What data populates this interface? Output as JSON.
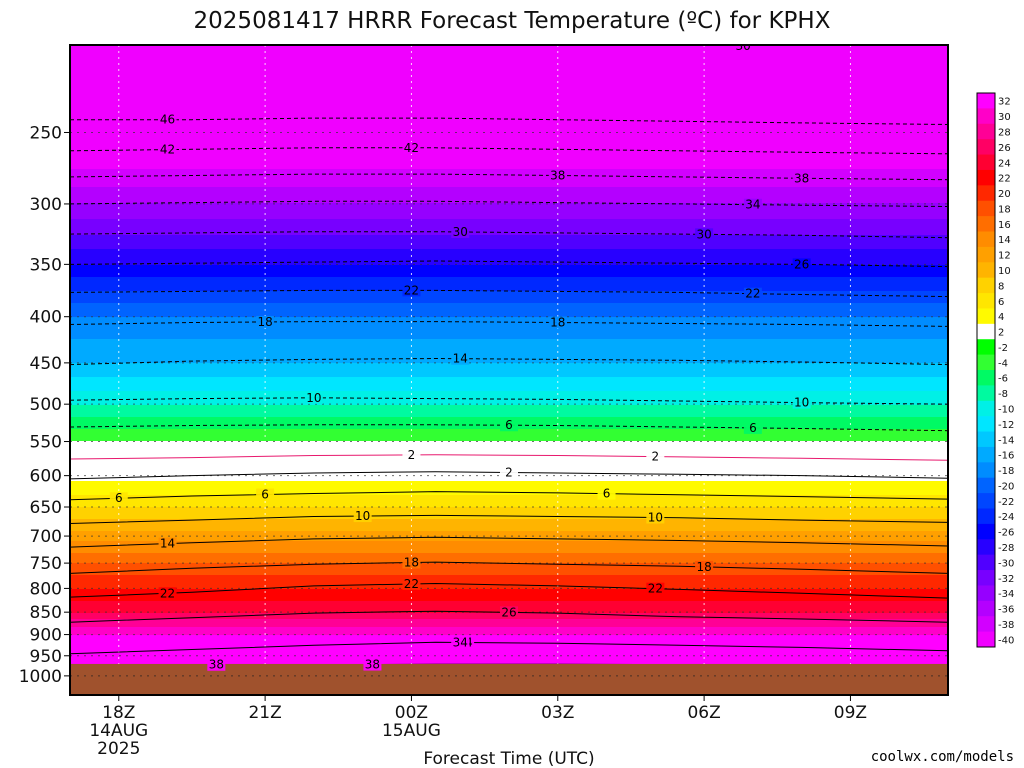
{
  "colors": {
    "ground": "#a0522d",
    "credit": "#dd3333",
    "frame": "#000000",
    "freezing_line": "#e8196e"
  },
  "chart_data": {
    "type": "heatmap",
    "title": "2025081417 HRRR Forecast Temperature (ºC) for KPHX",
    "xlabel": "Forecast Time (UTC)",
    "ylabel": "",
    "credit": "coolwx.com/models",
    "x_ticks": [
      {
        "hour": 18,
        "label": "18Z",
        "sub": [
          "14AUG",
          "2025"
        ]
      },
      {
        "hour": 21,
        "label": "21Z",
        "sub": []
      },
      {
        "hour": 24,
        "label": "00Z",
        "sub": [
          "15AUG"
        ]
      },
      {
        "hour": 27,
        "label": "03Z",
        "sub": []
      },
      {
        "hour": 30,
        "label": "06Z",
        "sub": []
      },
      {
        "hour": 33,
        "label": "09Z",
        "sub": []
      }
    ],
    "xlim_hours": [
      17,
      35
    ],
    "y_scale": "log-pressure",
    "ylim_hpa": [
      1050,
      200
    ],
    "y_ticks": [
      250,
      300,
      350,
      400,
      450,
      500,
      550,
      600,
      650,
      700,
      750,
      800,
      850,
      900,
      950,
      1000
    ],
    "surface_pressure_hpa": 970,
    "colorbar_levels": [
      32,
      30,
      28,
      26,
      24,
      22,
      20,
      18,
      16,
      14,
      12,
      10,
      8,
      6,
      4,
      2,
      -2,
      -4,
      -6,
      -8,
      -10,
      -12,
      -14,
      -16,
      -18,
      -20,
      -22,
      -24,
      -26,
      -28,
      -30,
      -32,
      -34,
      -36,
      -38,
      -40
    ],
    "colorbar_colors": [
      "#ff00ff",
      "#ff00c8",
      "#ff0096",
      "#ff0064",
      "#ff0032",
      "#ff0000",
      "#ff2800",
      "#ff5000",
      "#ff6e00",
      "#ff8c00",
      "#ffa000",
      "#ffb400",
      "#ffd200",
      "#ffe600",
      "#fffa00",
      "#ffffff",
      "#00ff00",
      "#32ff32",
      "#00fa64",
      "#00faa0",
      "#00f0e6",
      "#00e6ff",
      "#00c8ff",
      "#00aaff",
      "#008cff",
      "#0064ff",
      "#0046ff",
      "#0028ff",
      "#0000ff",
      "#2800ff",
      "#5000ff",
      "#7800ff",
      "#9600ff",
      "#b400ff",
      "#d200ff",
      "#f000ff"
    ],
    "temperature_profile": [
      {
        "p": 1000,
        "t": 38
      },
      {
        "p": 950,
        "t": 36
      },
      {
        "p": 900,
        "t": 32
      },
      {
        "p": 850,
        "t": 26
      },
      {
        "p": 800,
        "t": 22
      },
      {
        "p": 750,
        "t": 18
      },
      {
        "p": 700,
        "t": 13
      },
      {
        "p": 650,
        "t": 8
      },
      {
        "p": 600,
        "t": 3
      },
      {
        "p": 550,
        "t": -2
      },
      {
        "p": 500,
        "t": -8
      },
      {
        "p": 450,
        "t": -14
      },
      {
        "p": 400,
        "t": -18
      },
      {
        "p": 350,
        "t": -26
      },
      {
        "p": 300,
        "t": -34
      },
      {
        "p": 250,
        "t": -42
      },
      {
        "p": 200,
        "t": -52
      }
    ],
    "contours": [
      {
        "value": 38,
        "style": "solid",
        "p": [
          975,
          972,
          972,
          971,
          971,
          972,
          975,
          978
        ]
      },
      {
        "value": 34,
        "style": "solid",
        "p": [
          945,
          935,
          925,
          918,
          920,
          925,
          930,
          938
        ]
      },
      {
        "value": 26,
        "style": "solid",
        "p": [
          872,
          862,
          852,
          848,
          852,
          860,
          865,
          872
        ]
      },
      {
        "value": 22,
        "style": "solid",
        "p": [
          818,
          808,
          795,
          790,
          795,
          802,
          810,
          820
        ]
      },
      {
        "value": 18,
        "style": "solid",
        "p": [
          770,
          760,
          752,
          748,
          752,
          756,
          762,
          770
        ]
      },
      {
        "value": 14,
        "style": "solid",
        "p": [
          720,
          712,
          705,
          702,
          705,
          708,
          712,
          718
        ]
      },
      {
        "value": 10,
        "style": "solid",
        "p": [
          678,
          672,
          666,
          664,
          666,
          668,
          672,
          676
        ]
      },
      {
        "value": 6,
        "style": "solid",
        "p": [
          638,
          632,
          628,
          625,
          627,
          630,
          633,
          637
        ]
      },
      {
        "value": 2,
        "style": "solid",
        "p": [
          605,
          600,
          596,
          594,
          596,
          598,
          600,
          604
        ]
      },
      {
        "value": -2,
        "style": "dashed",
        "p": [
          575,
          573,
          570,
          569,
          570,
          572,
          574,
          577
        ]
      },
      {
        "value": 6,
        "style": "dashed",
        "p": [
          530,
          528,
          527,
          527,
          528,
          530,
          532,
          535
        ]
      },
      {
        "value": 10,
        "style": "dashed",
        "p": [
          495,
          493,
          492,
          493,
          494,
          496,
          498,
          500
        ]
      },
      {
        "value": 14,
        "style": "dashed",
        "p": [
          452,
          448,
          446,
          445,
          446,
          447,
          449,
          452
        ]
      },
      {
        "value": 18,
        "style": "dashed",
        "p": [
          408,
          406,
          405,
          405,
          406,
          407,
          408,
          410
        ]
      },
      {
        "value": 22,
        "style": "dashed",
        "p": [
          376,
          375,
          374,
          374,
          375,
          376,
          378,
          380
        ]
      },
      {
        "value": 26,
        "style": "dashed",
        "p": [
          350,
          349,
          348,
          347,
          348,
          349,
          350,
          352
        ]
      },
      {
        "value": 30,
        "style": "dashed",
        "p": [
          324,
          323,
          322,
          322,
          323,
          324,
          325,
          327
        ]
      },
      {
        "value": 34,
        "style": "dashed",
        "p": [
          300,
          299,
          298,
          298,
          299,
          300,
          301,
          302
        ]
      },
      {
        "value": 38,
        "style": "dashed",
        "p": [
          280,
          279,
          278,
          278,
          279,
          280,
          281,
          282
        ]
      },
      {
        "value": 42,
        "style": "dashed",
        "p": [
          262,
          261,
          260,
          260,
          261,
          262,
          263,
          264
        ]
      },
      {
        "value": 46,
        "style": "dashed",
        "p": [
          242,
          242,
          241,
          241,
          242,
          243,
          244,
          245
        ]
      }
    ],
    "contour_hours": [
      17,
      19.5,
      22,
      24.5,
      27,
      29.5,
      32,
      35
    ],
    "contour_labels": [
      {
        "value": 38,
        "text": "38",
        "hour": 23.2
      },
      {
        "value": 34,
        "text": "34",
        "hour": 25.1
      },
      {
        "value": 26,
        "text": "26",
        "hour": 26.0
      },
      {
        "value": 22,
        "text": "22",
        "hour": 24.0
      },
      {
        "value": 22,
        "text": "22",
        "hour": 29.0
      },
      {
        "value": 18,
        "text": "18",
        "hour": 24.0
      },
      {
        "value": 18,
        "text": "18",
        "hour": 30.0
      },
      {
        "value": 14,
        "text": "14",
        "hour": 19.0
      },
      {
        "value": 10,
        "text": "10",
        "hour": 23.0
      },
      {
        "value": 10,
        "text": "10",
        "hour": 29.0
      },
      {
        "value": 6,
        "text": "6",
        "hour": 18.0
      },
      {
        "value": 6,
        "text": "6",
        "hour": 28.0
      },
      {
        "value": 2,
        "text": "2",
        "hour": 26.0
      },
      {
        "value": -2,
        "text": "2",
        "hour": 24.0
      },
      {
        "value": -2,
        "text": "2",
        "hour": 29.0
      },
      {
        "value": 6,
        "text": "6",
        "hour": 21.0
      },
      {
        "value": 6,
        "text": "6",
        "hour": 26.0
      },
      {
        "value": 6,
        "text": "6",
        "hour": 31.0
      },
      {
        "value": 10,
        "text": "10",
        "hour": 22.0
      },
      {
        "value": 10,
        "text": "10",
        "hour": 32.0
      },
      {
        "value": 14,
        "text": "14",
        "hour": 25.0
      },
      {
        "value": 18,
        "text": "18",
        "hour": 21.0
      },
      {
        "value": 18,
        "text": "18",
        "hour": 27.0
      },
      {
        "value": 22,
        "text": "22",
        "hour": 19.0
      },
      {
        "value": 22,
        "text": "22",
        "hour": 24.0
      },
      {
        "value": 22,
        "text": "22",
        "hour": 31.0
      },
      {
        "value": 26,
        "text": "26",
        "hour": 32.0
      },
      {
        "value": 30,
        "text": "30",
        "hour": 25.0
      },
      {
        "value": 30,
        "text": "30",
        "hour": 30.0
      },
      {
        "value": 34,
        "text": "34",
        "hour": 25.0
      },
      {
        "value": 34,
        "text": "34",
        "hour": 31.0
      },
      {
        "value": 38,
        "text": "38",
        "hour": 20.0
      },
      {
        "value": 38,
        "text": "38",
        "hour": 27.0
      },
      {
        "value": 38,
        "text": "38",
        "hour": 32.0
      },
      {
        "value": 42,
        "text": "42",
        "hour": 19.0
      },
      {
        "value": 42,
        "text": "42",
        "hour": 24.0
      },
      {
        "value": 46,
        "text": "46",
        "hour": 19.0
      }
    ],
    "top_partial_label": "30"
  }
}
